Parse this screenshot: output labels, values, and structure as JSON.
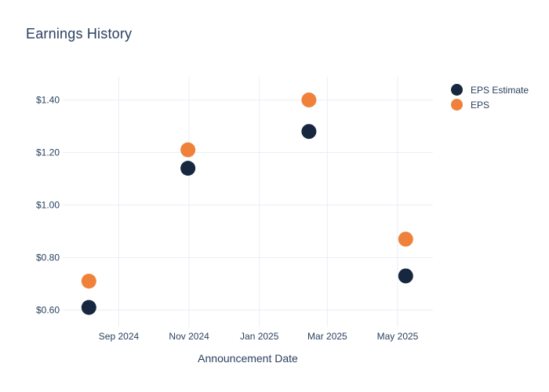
{
  "chart_data": {
    "type": "scatter",
    "title": "Earnings History",
    "xlabel": "Announcement Date",
    "ylabel": "",
    "grid": true,
    "legend_position": "right",
    "x_ticks": [
      {
        "label": "Sep 2024",
        "date": "2024-09-01"
      },
      {
        "label": "Nov 2024",
        "date": "2024-11-01"
      },
      {
        "label": "Jan 2025",
        "date": "2025-01-01"
      },
      {
        "label": "Mar 2025",
        "date": "2025-03-01"
      },
      {
        "label": "May 2025",
        "date": "2025-05-01"
      }
    ],
    "y_ticks": [
      {
        "label": "$0.60",
        "value": 0.6
      },
      {
        "label": "$0.80",
        "value": 0.8
      },
      {
        "label": "$1.00",
        "value": 1.0
      },
      {
        "label": "$1.20",
        "value": 1.2
      },
      {
        "label": "$1.40",
        "value": 1.4
      }
    ],
    "ylim": [
      0.55,
      1.49
    ],
    "series": [
      {
        "name": "EPS Estimate",
        "color": "#16273f",
        "points": [
          {
            "date": "2024-08-06",
            "value": 0.61
          },
          {
            "date": "2024-10-31",
            "value": 1.14
          },
          {
            "date": "2025-02-13",
            "value": 1.28
          },
          {
            "date": "2025-05-08",
            "value": 0.73
          }
        ]
      },
      {
        "name": "EPS",
        "color": "#f0813a",
        "points": [
          {
            "date": "2024-08-06",
            "value": 0.71
          },
          {
            "date": "2024-10-31",
            "value": 1.21
          },
          {
            "date": "2025-02-13",
            "value": 1.4
          },
          {
            "date": "2025-05-08",
            "value": 0.87
          }
        ]
      }
    ],
    "theme": {
      "text_color": "#2a3f5f",
      "grid_color": "#e9eef6",
      "background": "#ffffff"
    }
  }
}
